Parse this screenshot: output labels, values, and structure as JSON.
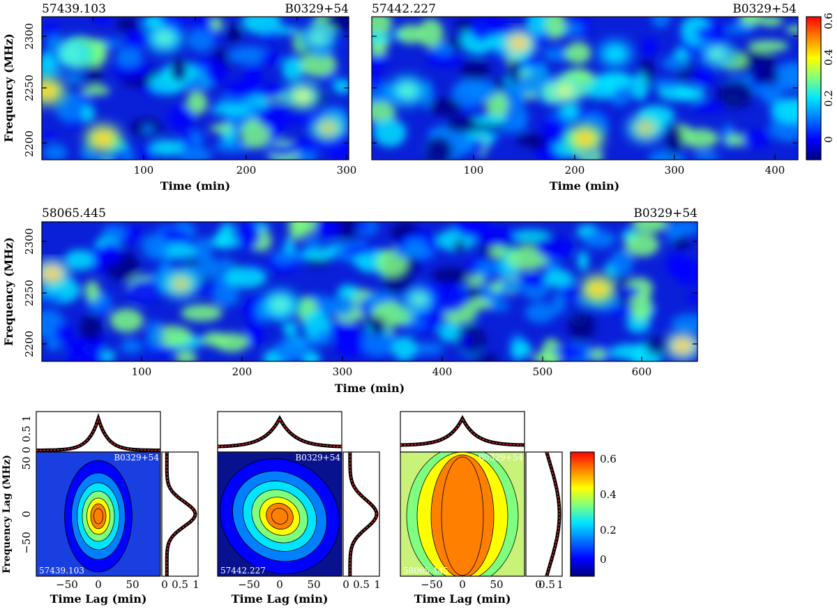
{
  "colormap": [
    "#00007f",
    "#0000ff",
    "#0080ff",
    "#00e5ff",
    "#7fff7f",
    "#ffff00",
    "#ff8000",
    "#ff0000"
  ],
  "chart_data": [
    {
      "type": "heatmap",
      "mjd": "57439.103",
      "source": "B0329+54",
      "xlabel": "Time (min)",
      "ylabel": "Frequency (MHz)",
      "xlim": [
        0,
        300
      ],
      "ylim": [
        2185,
        2320
      ],
      "xticks": [
        "100",
        "200",
        "300"
      ],
      "yticks": [
        "2200",
        "2250",
        "2300"
      ],
      "blobs": [
        {
          "t": 5,
          "f": 2250,
          "v": 0.7
        },
        {
          "t": 60,
          "f": 2205,
          "v": 0.65
        },
        {
          "t": 120,
          "f": 2300,
          "v": 0.35
        },
        {
          "t": 255,
          "f": 2245,
          "v": 0.45
        },
        {
          "t": 280,
          "f": 2215,
          "v": 0.55
        },
        {
          "t": 270,
          "f": 2300,
          "v": 0.3
        },
        {
          "t": 30,
          "f": 2285,
          "v": 0.35
        }
      ]
    },
    {
      "type": "heatmap",
      "mjd": "57442.227",
      "source": "B0329+54",
      "xlabel": "Time (min)",
      "ylabel": "",
      "xlim": [
        0,
        420
      ],
      "ylim": [
        2185,
        2320
      ],
      "xticks": [
        "100",
        "200",
        "300",
        "400"
      ],
      "yticks": [],
      "blobs": [
        {
          "t": 145,
          "f": 2295,
          "v": 0.6
        },
        {
          "t": 210,
          "f": 2205,
          "v": 0.65
        },
        {
          "t": 270,
          "f": 2215,
          "v": 0.5
        },
        {
          "t": 190,
          "f": 2250,
          "v": 0.4
        },
        {
          "t": 35,
          "f": 2250,
          "v": 0.35
        },
        {
          "t": 340,
          "f": 2285,
          "v": 0.3
        },
        {
          "t": 240,
          "f": 2285,
          "v": 0.25
        }
      ]
    },
    {
      "type": "heatmap",
      "mjd": "58065.445",
      "source": "B0329+54",
      "xlabel": "Time (min)",
      "ylabel": "Frequency (MHz)",
      "xlim": [
        0,
        660
      ],
      "ylim": [
        2185,
        2320
      ],
      "xticks": [
        "100",
        "200",
        "300",
        "400",
        "500",
        "600"
      ],
      "yticks": [
        "2200",
        "2250",
        "2300"
      ],
      "blobs": [
        {
          "t": 10,
          "f": 2270,
          "v": 0.6
        },
        {
          "t": 140,
          "f": 2260,
          "v": 0.5
        },
        {
          "t": 560,
          "f": 2255,
          "v": 0.7
        },
        {
          "t": 645,
          "f": 2200,
          "v": 0.6
        },
        {
          "t": 240,
          "f": 2240,
          "v": 0.35
        },
        {
          "t": 380,
          "f": 2245,
          "v": 0.3
        }
      ]
    },
    {
      "type": "heatmap",
      "mjd": "57439.103",
      "source": "B0329+54",
      "xlabel": "Time Lag (min)",
      "ylabel": "Frequency Lag (MHz)",
      "xlim": [
        -90,
        90
      ],
      "ylim": [
        -70,
        70
      ],
      "xticks": [
        "−50",
        "0",
        "50"
      ],
      "yticks": [
        "−50",
        "0",
        "50"
      ],
      "acf_shape": "compact",
      "top_profile_ticks": [
        "0",
        "0.5",
        "1"
      ],
      "side_profile_ticks": [
        "0",
        "0.5",
        "1"
      ]
    },
    {
      "type": "heatmap",
      "mjd": "57442.227",
      "source": "B0329+54",
      "xlabel": "Time Lag (min)",
      "ylabel": "",
      "xlim": [
        -90,
        90
      ],
      "ylim": [
        -70,
        70
      ],
      "xticks": [
        "−50",
        "0",
        "50"
      ],
      "yticks": [],
      "acf_shape": "tilted",
      "top_profile_ticks": [],
      "side_profile_ticks": [
        "0",
        "0.5",
        "1"
      ]
    },
    {
      "type": "heatmap",
      "mjd": "58065.445",
      "source": "B0329+54",
      "xlabel": "Time Lag (min)",
      "ylabel": "",
      "xlim": [
        -90,
        90
      ],
      "ylim": [
        -70,
        70
      ],
      "xticks": [
        "−50",
        "0",
        "50"
      ],
      "yticks": [],
      "acf_shape": "elongated",
      "top_profile_ticks": [],
      "side_profile_ticks": [
        "0",
        "0.5",
        "1"
      ]
    }
  ],
  "colorbars": [
    {
      "ticks": [
        "0",
        "0.2",
        "0.4",
        "0.6"
      ],
      "range": [
        -0.1,
        0.6
      ]
    },
    {
      "ticks": [
        "0",
        "0.2",
        "0.4",
        "0.6"
      ],
      "range": [
        -0.1,
        0.6
      ]
    }
  ]
}
